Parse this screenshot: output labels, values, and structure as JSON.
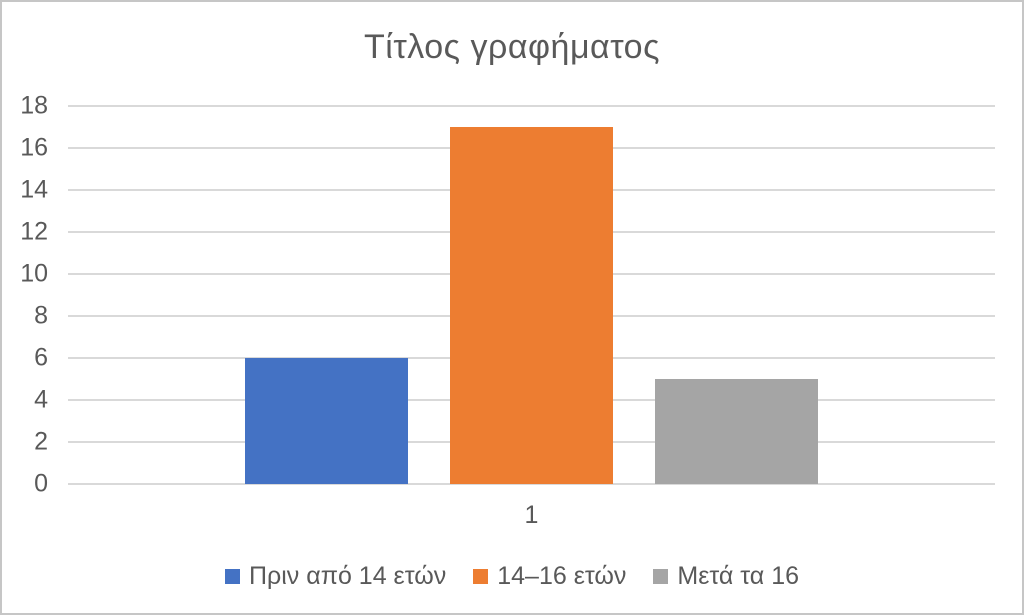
{
  "chart_data": {
    "type": "bar",
    "title": "Τίτλος γραφήματος",
    "categories": [
      "1"
    ],
    "series": [
      {
        "name": "Πριν από 14 ετών",
        "values": [
          6
        ],
        "color": "#4472C4"
      },
      {
        "name": "14–16 ετών",
        "values": [
          17
        ],
        "color": "#ED7D31"
      },
      {
        "name": "Μετά τα 16",
        "values": [
          5
        ],
        "color": "#A5A5A5"
      }
    ],
    "xlabel": "",
    "ylabel": "",
    "ylim": [
      0,
      18
    ],
    "ytick_step": 2,
    "grid": true,
    "legend_position": "bottom",
    "text_color": "#595959",
    "gridline_color": "#D9D9D9",
    "background_color": "#FFFFFF"
  }
}
